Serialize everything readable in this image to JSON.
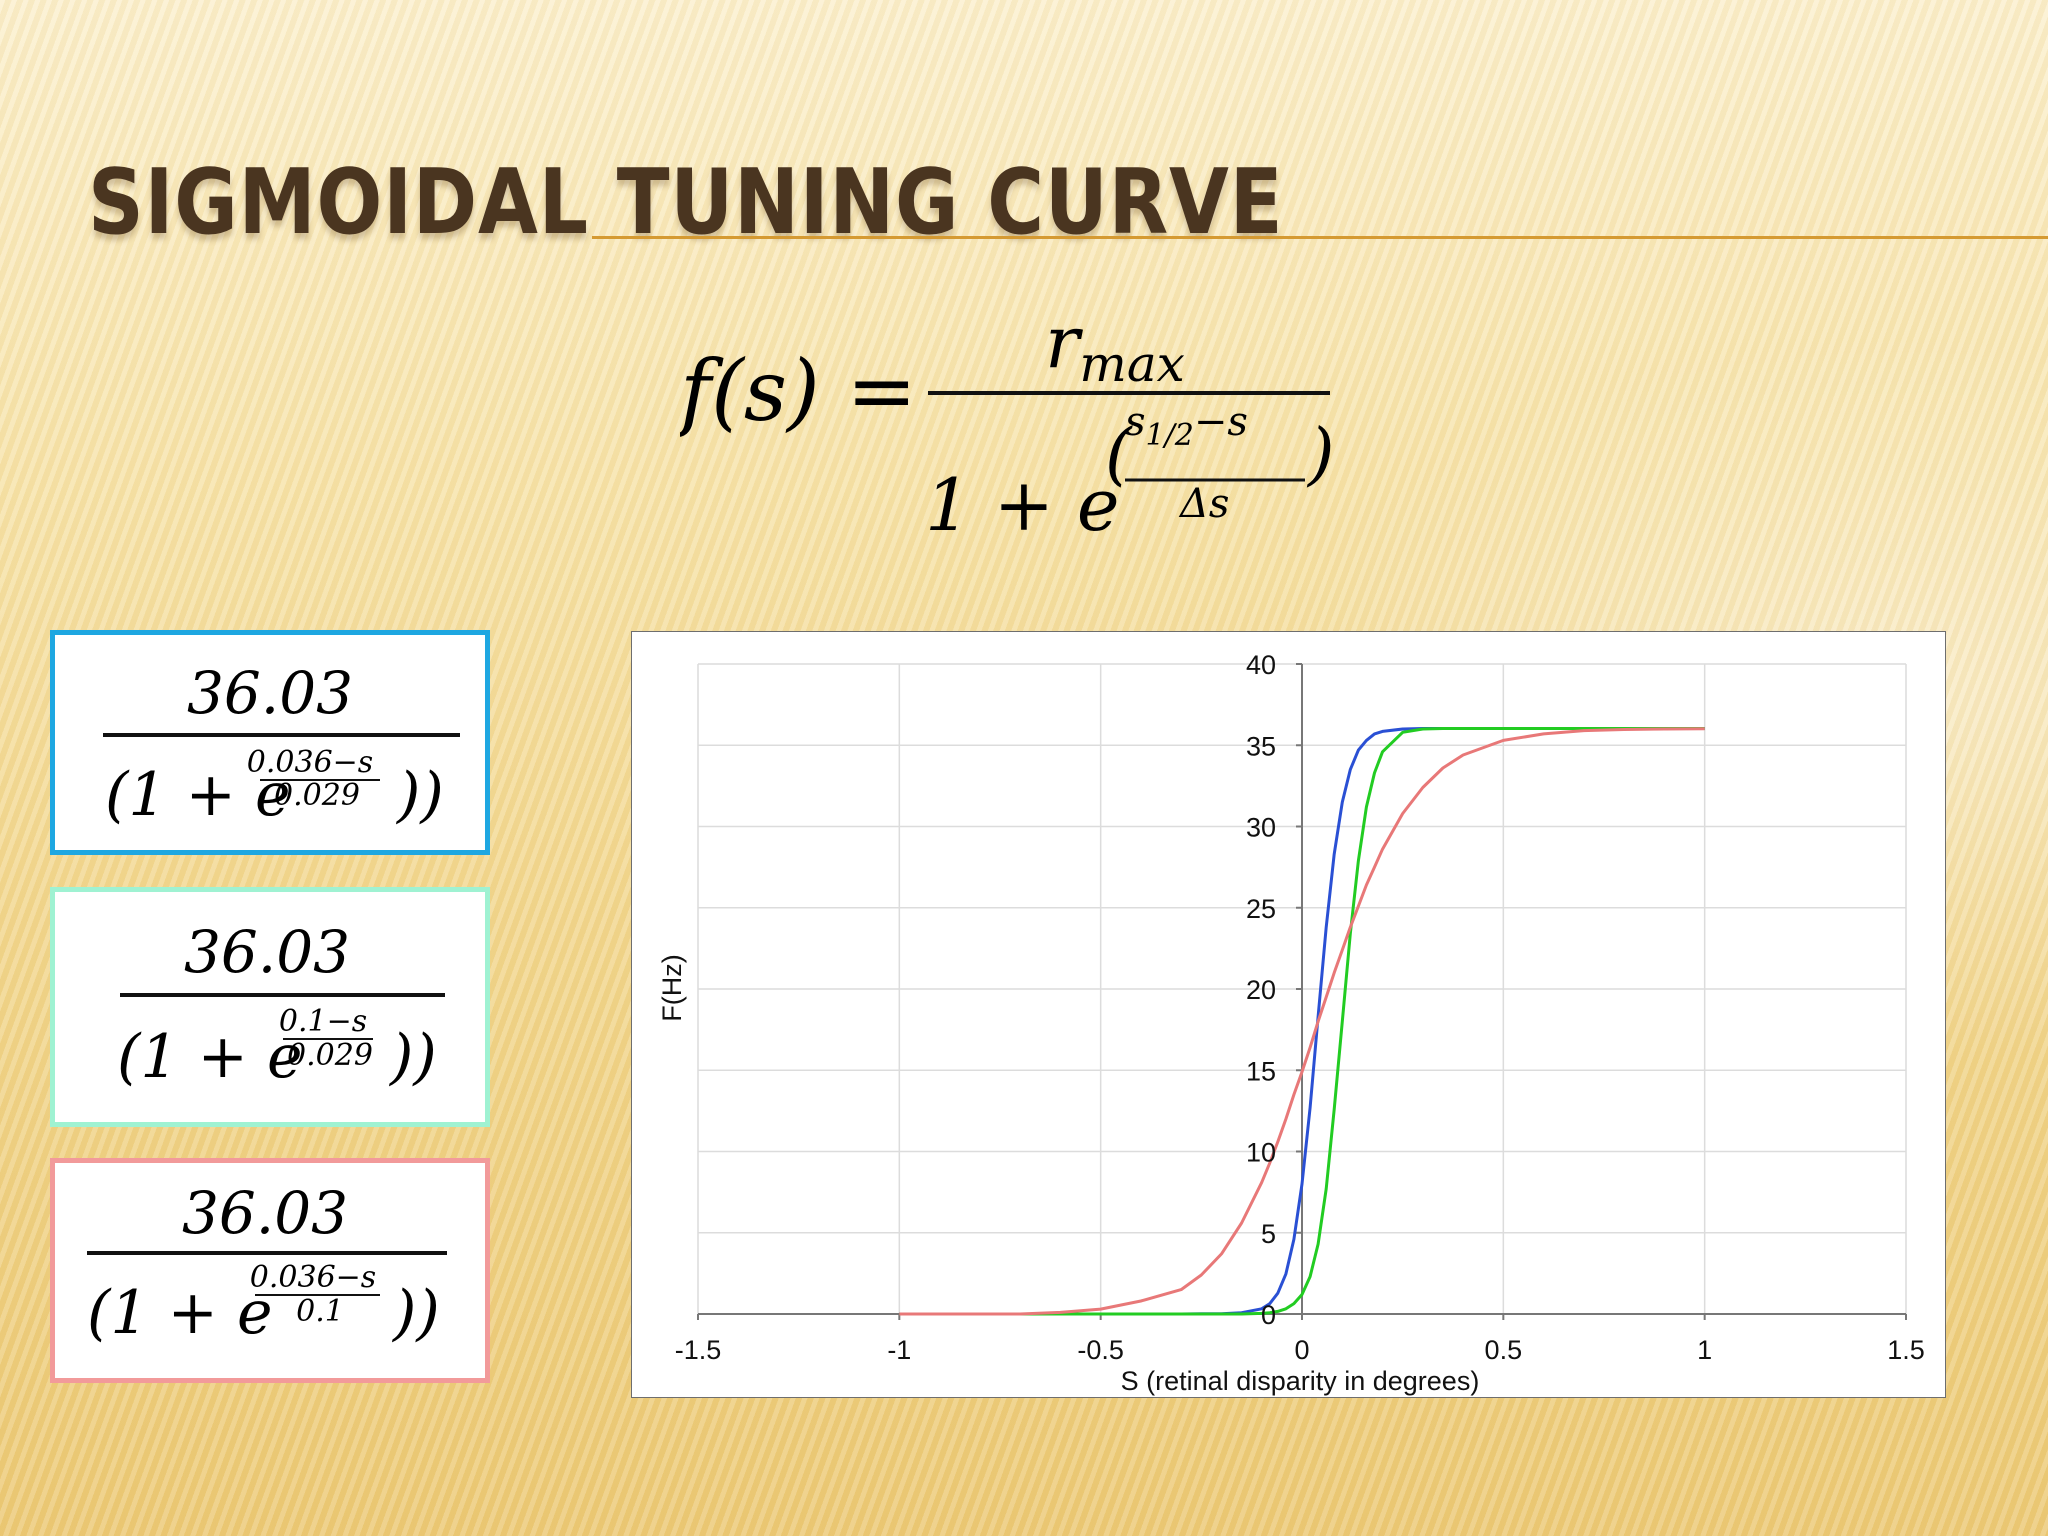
{
  "slide": {
    "title": "SIGMOIDAL TUNING CURVE"
  },
  "main_formula": {
    "lhs": "f(s) =",
    "numerator_r": "r",
    "numerator_sub": "max",
    "denominator_base": "1 + e",
    "exponent_numerator": "s1/2−s",
    "exponent_numerator_base": "s",
    "exponent_numerator_sub": "1/2",
    "exponent_numerator_tail": "−s",
    "exponent_denominator": "Δs",
    "open_paren": "(",
    "close_paren": ")"
  },
  "formula_boxes": [
    {
      "color": "#1ea7e1",
      "numerator": "36.03",
      "lead": "(1 + e",
      "exp_num": "0.036−s",
      "exp_den": "0.029",
      "tail": "))"
    },
    {
      "color": "#9ff2d2",
      "numerator": "36.03",
      "lead": "(1 + e",
      "exp_num": "0.1−s",
      "exp_den": "0.029",
      "tail": "))"
    },
    {
      "color": "#f29a9a",
      "numerator": "36.03",
      "lead": "(1 + e",
      "exp_num": "0.036−s",
      "exp_den": "0.1",
      "tail": "))"
    }
  ],
  "chart_data": {
    "type": "line",
    "xlabel": "S (retinal disparity in degrees)",
    "ylabel": "F(Hz)",
    "xlim": [
      -1.5,
      1.5
    ],
    "ylim": [
      0,
      40
    ],
    "xticks": [
      "-1.5",
      "-1",
      "-0.5",
      "0",
      "0.5",
      "1",
      "1.5"
    ],
    "xtick_values": [
      -1.5,
      -1,
      -0.5,
      0,
      0.5,
      1,
      1.5
    ],
    "yticks": [
      "0",
      "5",
      "10",
      "15",
      "20",
      "25",
      "30",
      "35",
      "40"
    ],
    "ytick_values": [
      0,
      5,
      10,
      15,
      20,
      25,
      30,
      35,
      40
    ],
    "grid": true,
    "x": [
      -1.0,
      -0.9,
      -0.8,
      -0.7,
      -0.6,
      -0.5,
      -0.4,
      -0.3,
      -0.25,
      -0.2,
      -0.15,
      -0.1,
      -0.08,
      -0.06,
      -0.04,
      -0.02,
      0.0,
      0.02,
      0.04,
      0.06,
      0.08,
      0.1,
      0.12,
      0.14,
      0.16,
      0.18,
      0.2,
      0.25,
      0.3,
      0.35,
      0.4,
      0.5,
      0.6,
      0.7,
      0.8,
      0.9,
      1.0
    ],
    "series": [
      {
        "color": "#2a50d4",
        "values": [
          0.0,
          0.0,
          0.0,
          0.0,
          0.0,
          0.0,
          0.0,
          0.0,
          0.01,
          0.02,
          0.08,
          0.32,
          0.64,
          1.28,
          2.47,
          4.6,
          8.0,
          12.7,
          18.3,
          23.8,
          28.3,
          31.5,
          33.5,
          34.7,
          35.3,
          35.7,
          35.85,
          36.0,
          36.03,
          36.03,
          36.03,
          36.03,
          36.03,
          36.03,
          36.03,
          36.03,
          36.03
        ]
      },
      {
        "color": "#22cc22",
        "values": [
          0.0,
          0.0,
          0.0,
          0.0,
          0.0,
          0.0,
          0.0,
          0.0,
          0.0,
          0.0,
          0.0,
          0.04,
          0.08,
          0.16,
          0.32,
          0.64,
          1.2,
          2.3,
          4.3,
          7.7,
          12.6,
          18.0,
          23.4,
          27.9,
          31.2,
          33.3,
          34.6,
          35.8,
          36.0,
          36.03,
          36.03,
          36.03,
          36.03,
          36.03,
          36.03,
          36.03,
          36.03
        ]
      },
      {
        "color": "#e87878",
        "values": [
          0.0,
          0.0,
          0.0,
          0.0,
          0.1,
          0.3,
          0.8,
          1.5,
          2.4,
          3.7,
          5.6,
          8.1,
          9.3,
          10.6,
          12.0,
          13.5,
          14.9,
          16.4,
          18.0,
          19.5,
          21.0,
          22.4,
          23.8,
          25.1,
          26.4,
          27.5,
          28.6,
          30.8,
          32.4,
          33.6,
          34.4,
          35.3,
          35.7,
          35.9,
          35.97,
          36.0,
          36.01
        ]
      }
    ]
  }
}
